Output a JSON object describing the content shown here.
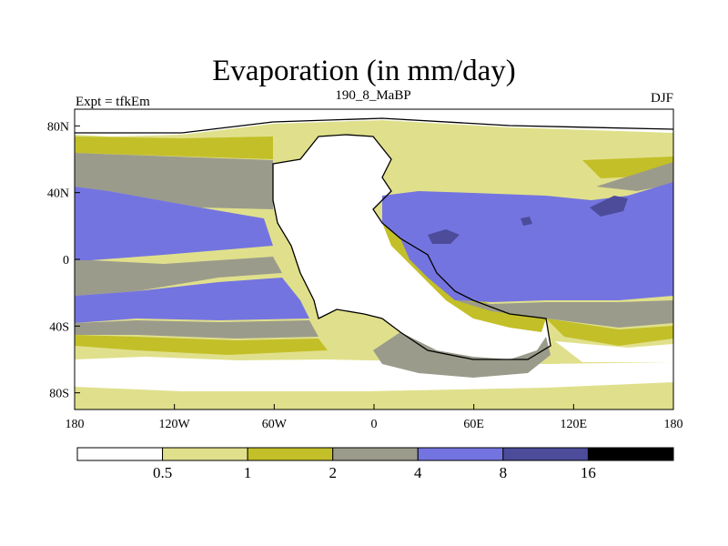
{
  "title": "Evaporation (in mm/day)",
  "left_label": "Expt = tfkEm",
  "center_label": "190_8_MaBP",
  "right_label": "DJF",
  "x_ticks": [
    {
      "value": -180,
      "label": "180"
    },
    {
      "value": -120,
      "label": "120W"
    },
    {
      "value": -60,
      "label": "60W"
    },
    {
      "value": 0,
      "label": "0"
    },
    {
      "value": 60,
      "label": "60E"
    },
    {
      "value": 120,
      "label": "120E"
    },
    {
      "value": 180,
      "label": "180"
    }
  ],
  "y_ticks": [
    {
      "value": 80,
      "label": "80N"
    },
    {
      "value": 40,
      "label": "40N"
    },
    {
      "value": 0,
      "label": "0"
    },
    {
      "value": -40,
      "label": "40S"
    },
    {
      "value": -80,
      "label": "80S"
    }
  ],
  "colorbar": {
    "levels": [
      "0.5",
      "1",
      "2",
      "4",
      "8",
      "16"
    ],
    "colors": [
      "#ffffff",
      "#e0e08c",
      "#c3bf28",
      "#9b9b8c",
      "#7474e0",
      "#4c4c9b",
      "#000000"
    ]
  },
  "map_colors": {
    "none": "#ffffff",
    "c1": "#e0e08c",
    "c2": "#c3bf28",
    "c3": "#9b9b8c",
    "c4": "#7474e0",
    "c5": "#4c4c9b"
  }
}
